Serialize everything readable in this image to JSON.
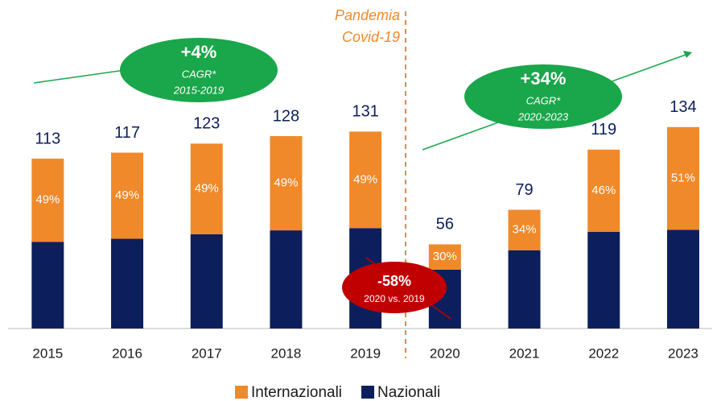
{
  "chart_data": {
    "type": "stacked_bar",
    "categories": [
      "2015",
      "2016",
      "2017",
      "2018",
      "2019",
      "2020",
      "2021",
      "2022",
      "2023"
    ],
    "series": [
      {
        "name": "Nazionali",
        "color": "#0c1f5c",
        "values": [
          57.6,
          59.7,
          62.7,
          65.3,
          66.8,
          39.2,
          52.1,
          64.3,
          65.7
        ]
      },
      {
        "name": "Internazionali",
        "color": "#f0892a",
        "values": [
          55.4,
          57.3,
          60.3,
          62.7,
          64.2,
          16.8,
          26.9,
          54.7,
          68.3
        ]
      }
    ],
    "totals": [
      "113",
      "117",
      "123",
      "128",
      "131",
      "56",
      "79",
      "119",
      "134"
    ],
    "share_labels": [
      "49%",
      "49%",
      "49%",
      "49%",
      "49%",
      "30%",
      "34%",
      "46%",
      "51%"
    ],
    "annotations": {
      "pandemic": [
        "Pandemia",
        "Covid-19"
      ],
      "cagr1": {
        "value": "+4%",
        "label": "CAGR*",
        "period": "2015-2019"
      },
      "cagr2": {
        "value": "+34%",
        "label": "CAGR*",
        "period": "2020-2023"
      },
      "drop": {
        "value": "-58%",
        "period": "2020 vs. 2019"
      }
    },
    "legend_order": [
      1,
      0
    ]
  }
}
